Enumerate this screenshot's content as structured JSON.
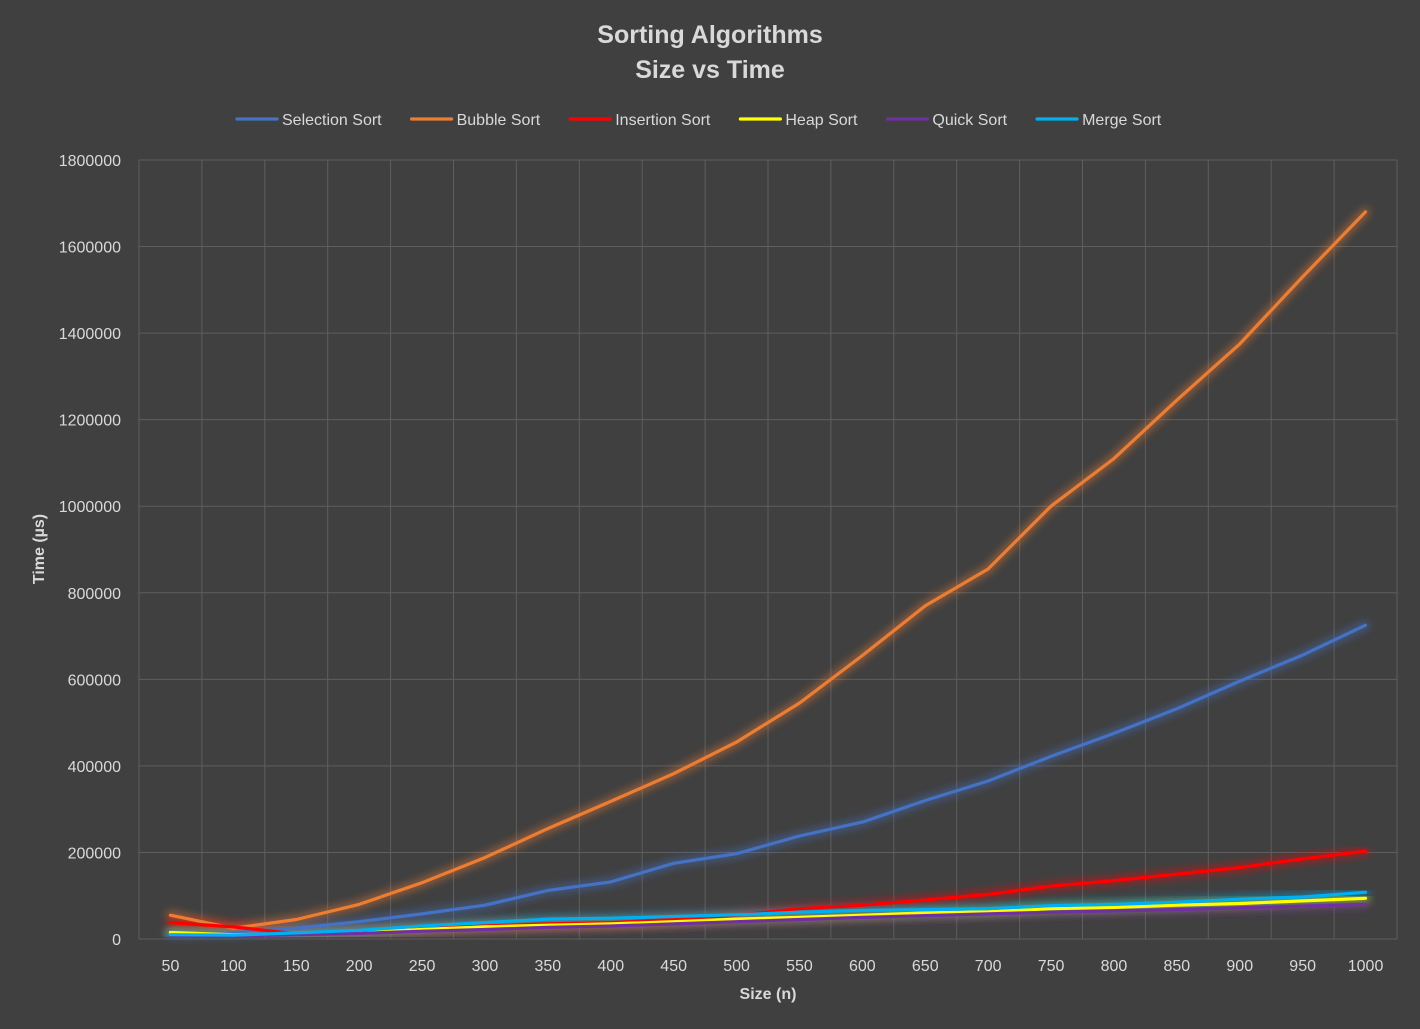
{
  "chart_data": {
    "type": "line",
    "title": "Sorting Algorithms",
    "subtitle": "Size vs Time",
    "xlabel": "Size (n)",
    "ylabel": "Time (µs)",
    "x": [
      50,
      100,
      150,
      200,
      250,
      300,
      350,
      400,
      450,
      500,
      550,
      600,
      650,
      700,
      750,
      800,
      850,
      900,
      950,
      1000
    ],
    "ylim": [
      0,
      1800000
    ],
    "yticks": [
      0,
      200000,
      400000,
      600000,
      800000,
      1000000,
      1200000,
      1400000,
      1600000,
      1800000
    ],
    "grid": true,
    "legend_position": "top",
    "series": [
      {
        "name": "Selection Sort",
        "color": "#4472c4",
        "values": [
          12000,
          14000,
          25000,
          40000,
          58000,
          78000,
          112000,
          132000,
          175000,
          197000,
          238000,
          270000,
          320000,
          365000,
          422000,
          475000,
          532000,
          596000,
          656000,
          725000
        ]
      },
      {
        "name": "Bubble Sort",
        "color": "#ed7d31",
        "values": [
          55000,
          25000,
          45000,
          80000,
          130000,
          188000,
          255000,
          318000,
          382000,
          455000,
          545000,
          655000,
          770000,
          855000,
          1000000,
          1110000,
          1245000,
          1375000,
          1530000,
          1680000
        ]
      },
      {
        "name": "Insertion Sort",
        "color": "#ff0000",
        "values": [
          38000,
          28000,
          12000,
          18000,
          25000,
          30000,
          35000,
          38000,
          45000,
          55000,
          70000,
          78000,
          90000,
          103000,
          122000,
          135000,
          150000,
          165000,
          185000,
          203000
        ]
      },
      {
        "name": "Heap Sort",
        "color": "#ffff00",
        "values": [
          15000,
          10000,
          12000,
          16000,
          22000,
          28000,
          32000,
          35000,
          40000,
          46000,
          50000,
          55000,
          60000,
          63000,
          70000,
          73000,
          78000,
          82000,
          88000,
          94000
        ]
      },
      {
        "name": "Quick Sort",
        "color": "#7030a0",
        "values": [
          8000,
          7000,
          10000,
          13000,
          18000,
          22000,
          27000,
          30000,
          35000,
          40000,
          45000,
          50000,
          54000,
          58000,
          62000,
          65000,
          68000,
          72000,
          76000,
          80000
        ]
      },
      {
        "name": "Merge Sort",
        "color": "#00b0f0",
        "values": [
          10000,
          9000,
          14000,
          20000,
          30000,
          38000,
          46000,
          48000,
          52000,
          56000,
          62000,
          66000,
          68000,
          70000,
          77000,
          80000,
          85000,
          92000,
          97000,
          108000
        ]
      }
    ]
  }
}
